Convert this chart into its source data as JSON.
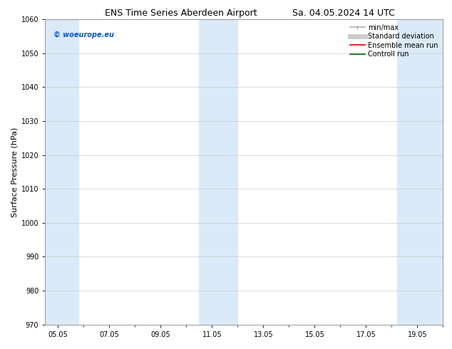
{
  "title": "ENS Time Series Aberdeen Airport",
  "title2": "Sa. 04.05.2024 14 UTC",
  "ylabel": "Surface Pressure (hPa)",
  "ylim": [
    970,
    1060
  ],
  "yticks": [
    970,
    980,
    990,
    1000,
    1010,
    1020,
    1030,
    1040,
    1050,
    1060
  ],
  "xtick_labels": [
    "05.05",
    "07.05",
    "09.05",
    "11.05",
    "13.05",
    "15.05",
    "17.05",
    "19.05"
  ],
  "xtick_positions": [
    0,
    2,
    4,
    6,
    8,
    10,
    12,
    14
  ],
  "xmin": -0.5,
  "xmax": 15.0,
  "shaded_bands": [
    {
      "xmin": -0.5,
      "xmax": 0.8
    },
    {
      "xmin": 5.5,
      "xmax": 7.0
    },
    {
      "xmin": 13.2,
      "xmax": 15.0
    }
  ],
  "band_color": "#daeaf8",
  "band_alpha": 1.0,
  "watermark_text": "© woeurope.eu",
  "watermark_color": "#0055cc",
  "legend_items": [
    {
      "label": "min/max",
      "color": "#b0b0b0",
      "lw": 1.2
    },
    {
      "label": "Standard deviation",
      "color": "#cccccc",
      "lw": 5
    },
    {
      "label": "Ensemble mean run",
      "color": "#dd0000",
      "lw": 1.2
    },
    {
      "label": "Controll run",
      "color": "#006600",
      "lw": 1.2
    }
  ],
  "bg_color": "#ffffff",
  "grid_color": "#cccccc",
  "title_fontsize": 9,
  "tick_fontsize": 7,
  "ylabel_fontsize": 8,
  "legend_fontsize": 7
}
